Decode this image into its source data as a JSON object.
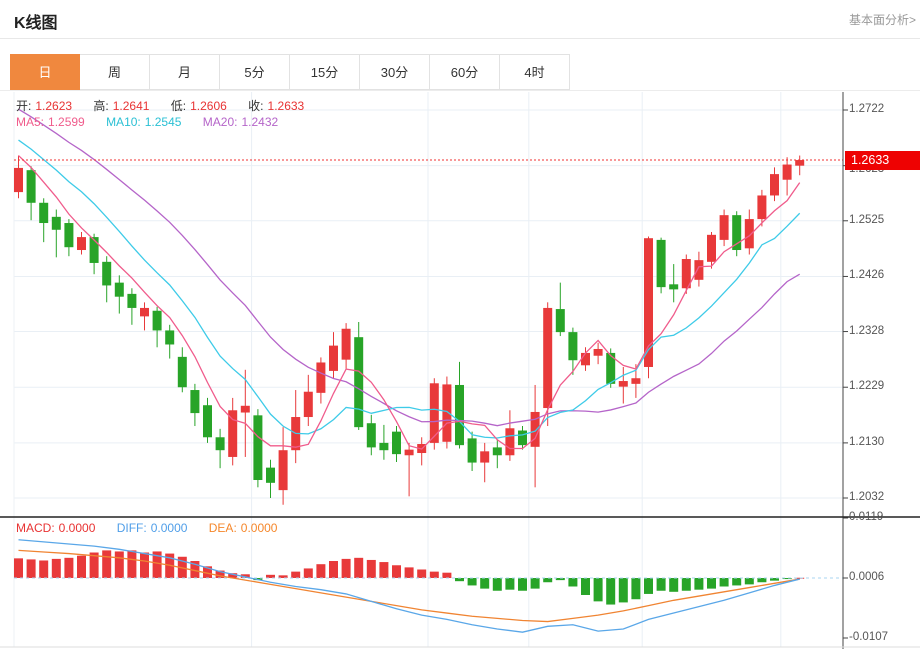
{
  "header": {
    "title": "K线图",
    "link": "基本面分析>"
  },
  "tabs": {
    "items": [
      "日",
      "周",
      "月",
      "5分",
      "15分",
      "30分",
      "60分",
      "4时"
    ],
    "selected_index": 0,
    "selected_color": "#f0883e"
  },
  "main_chart": {
    "legend_ohlc": {
      "open_label": "开:",
      "open": "1.2623",
      "high_label": "高:",
      "high": "1.2641",
      "low_label": "低:",
      "low": "1.2606",
      "close_label": "收:",
      "close": "1.2633"
    },
    "legend_ma": {
      "ma5_label": "MA5:",
      "ma5": "1.2599",
      "ma10_label": "MA10:",
      "ma10": "1.2545",
      "ma20_label": "MA20:",
      "ma20": "1.2432"
    },
    "y_axis_labels": [
      "1.2722",
      "1.2623",
      "1.2525",
      "1.2426",
      "1.2328",
      "1.2229",
      "1.2130",
      "1.2032"
    ],
    "current_price": "1.2633"
  },
  "macd_panel": {
    "legend": {
      "macd_label": "MACD:",
      "macd": "0.0000",
      "diff_label": "DIFF:",
      "diff": "0.0000",
      "dea_label": "DEA:",
      "dea": "0.0000"
    },
    "y_axis_labels": [
      "0.0119",
      "0.0006",
      "-0.0107"
    ]
  },
  "chart_data": {
    "type": "candlestick+macd",
    "colors": {
      "up": "#e8393a",
      "down": "#28a428",
      "ma5": "#f05c8c",
      "ma10": "#3ecbe8",
      "ma20": "#b565c9",
      "diff_line": "#5aa7e8",
      "dea_line": "#f08432",
      "grid": "#e9eff5",
      "axis": "#444",
      "price_line": "#f23030",
      "zero_dash": "#a8d4f0"
    },
    "x_gridline_indices": [
      19,
      33,
      41,
      50,
      61
    ],
    "panels": [
      {
        "type": "candlestick",
        "y_range": [
          1.2032,
          1.2722
        ],
        "gridline_prices": [
          1.2722,
          1.2623,
          1.2525,
          1.2426,
          1.2328,
          1.2229,
          1.213,
          1.2032
        ],
        "current_price": 1.2633,
        "ma_periods": [
          5,
          10,
          20
        ],
        "candles": [
          [
            1.2576,
            1.2641,
            1.2565,
            1.2619
          ],
          [
            1.2615,
            1.2622,
            1.2526,
            1.2557
          ],
          [
            1.2557,
            1.2565,
            1.2487,
            1.2521
          ],
          [
            1.2532,
            1.2545,
            1.246,
            1.2509
          ],
          [
            1.2521,
            1.2528,
            1.2462,
            1.2478
          ],
          [
            1.2473,
            1.2505,
            1.2465,
            1.2496
          ],
          [
            1.2496,
            1.2502,
            1.243,
            1.245
          ],
          [
            1.2452,
            1.2462,
            1.238,
            1.241
          ],
          [
            1.2415,
            1.2428,
            1.236,
            1.239
          ],
          [
            1.2395,
            1.2405,
            1.234,
            1.237
          ],
          [
            1.2355,
            1.238,
            1.233,
            1.237
          ],
          [
            1.2365,
            1.2372,
            1.23,
            1.233
          ],
          [
            1.233,
            1.234,
            1.228,
            1.2305
          ],
          [
            1.2283,
            1.23,
            1.222,
            1.2229
          ],
          [
            1.2224,
            1.2235,
            1.216,
            1.2183
          ],
          [
            1.2197,
            1.221,
            1.213,
            1.214
          ],
          [
            1.214,
            1.2155,
            1.2085,
            1.2117
          ],
          [
            1.2105,
            1.221,
            1.209,
            1.2188
          ],
          [
            1.2184,
            1.226,
            1.2105,
            1.2196
          ],
          [
            1.2179,
            1.219,
            1.2051,
            1.2064
          ],
          [
            1.2086,
            1.21,
            1.2032,
            1.2059
          ],
          [
            1.2046,
            1.2158,
            1.202,
            1.2117
          ],
          [
            1.2117,
            1.2224,
            1.2094,
            1.2176
          ],
          [
            1.2176,
            1.2251,
            1.216,
            1.2221
          ],
          [
            1.2219,
            1.2282,
            1.22,
            1.2273
          ],
          [
            1.2258,
            1.2327,
            1.2245,
            1.2303
          ],
          [
            1.2278,
            1.2343,
            1.2262,
            1.2333
          ],
          [
            1.2318,
            1.2345,
            1.2153,
            1.2158
          ],
          [
            1.2165,
            1.218,
            1.2108,
            1.2122
          ],
          [
            1.213,
            1.2162,
            1.21,
            1.2117
          ],
          [
            1.215,
            1.216,
            1.2096,
            1.211
          ],
          [
            1.2108,
            1.213,
            1.2035,
            1.2118
          ],
          [
            1.2112,
            1.214,
            1.209,
            1.2128
          ],
          [
            1.213,
            1.2245,
            1.2118,
            1.2236
          ],
          [
            1.2132,
            1.2248,
            1.212,
            1.2234
          ],
          [
            1.2233,
            1.2274,
            1.212,
            1.2126
          ],
          [
            1.2138,
            1.215,
            1.208,
            1.2095
          ],
          [
            1.2095,
            1.213,
            1.206,
            1.2115
          ],
          [
            1.2122,
            1.2135,
            1.2085,
            1.2108
          ],
          [
            1.2108,
            1.2188,
            1.2098,
            1.2156
          ],
          [
            1.2152,
            1.216,
            1.2118,
            1.2126
          ],
          [
            1.2123,
            1.2233,
            1.2051,
            1.2185
          ],
          [
            1.2192,
            1.238,
            1.216,
            1.237
          ],
          [
            1.2368,
            1.2415,
            1.232,
            1.2327
          ],
          [
            1.2327,
            1.2335,
            1.2251,
            1.2277
          ],
          [
            1.2268,
            1.23,
            1.2258,
            1.229
          ],
          [
            1.2285,
            1.2308,
            1.227,
            1.2297
          ],
          [
            1.229,
            1.2298,
            1.2228,
            1.2235
          ],
          [
            1.223,
            1.2265,
            1.22,
            1.224
          ],
          [
            1.2235,
            1.227,
            1.221,
            1.2245
          ],
          [
            1.2265,
            1.2497,
            1.2245,
            1.2494
          ],
          [
            1.2491,
            1.2495,
            1.2396,
            1.2407
          ],
          [
            1.2412,
            1.2448,
            1.238,
            1.2403
          ],
          [
            1.2405,
            1.2465,
            1.2395,
            1.2457
          ],
          [
            1.242,
            1.247,
            1.2408,
            1.2455
          ],
          [
            1.2452,
            1.2505,
            1.244,
            1.25
          ],
          [
            1.2491,
            1.2545,
            1.248,
            1.2535
          ],
          [
            1.2535,
            1.2542,
            1.2462,
            1.2473
          ],
          [
            1.2476,
            1.2545,
            1.2465,
            1.2528
          ],
          [
            1.2528,
            1.258,
            1.2515,
            1.257
          ],
          [
            1.257,
            1.262,
            1.256,
            1.2608
          ],
          [
            1.2598,
            1.2638,
            1.257,
            1.2625
          ],
          [
            1.2623,
            1.2641,
            1.2606,
            1.2633
          ]
        ]
      },
      {
        "type": "macd",
        "y_range": [
          -0.0107,
          0.0119
        ],
        "zero_level": 0.0006,
        "hist": [
          0.0037,
          0.0035,
          0.0033,
          0.0036,
          0.0038,
          0.0042,
          0.0048,
          0.0052,
          0.005,
          0.0052,
          0.0048,
          0.005,
          0.0046,
          0.004,
          0.0032,
          0.0022,
          0.0014,
          0.0009,
          0.0007,
          -0.0004,
          0.0006,
          0.0005,
          0.0012,
          0.0018,
          0.0026,
          0.0032,
          0.0036,
          0.0038,
          0.0034,
          0.003,
          0.0024,
          0.002,
          0.0016,
          0.0012,
          0.001,
          -0.0006,
          -0.0014,
          -0.002,
          -0.0024,
          -0.0022,
          -0.0024,
          -0.002,
          -0.0008,
          -0.0004,
          -0.0016,
          -0.0032,
          -0.0044,
          -0.005,
          -0.0046,
          -0.004,
          -0.003,
          -0.0024,
          -0.0026,
          -0.0024,
          -0.0022,
          -0.002,
          -0.0016,
          -0.0014,
          -0.0012,
          -0.0008,
          -0.0005,
          -0.0002,
          5e-05
        ],
        "diff": {
          "step": 2,
          "values": [
            0.0078,
            0.0074,
            0.007,
            0.0066,
            0.006,
            0.0052,
            0.0044,
            0.0032,
            0.0018,
            0.0008,
            -0.0002,
            -0.001,
            -0.0016,
            -0.0024,
            -0.0038,
            -0.0052,
            -0.0064,
            -0.0072,
            -0.0082,
            -0.009,
            -0.0096,
            -0.0085,
            -0.0082,
            -0.0094,
            -0.009,
            -0.0072,
            -0.006,
            -0.0048,
            -0.0036,
            -0.0022,
            -0.0008,
            0.0004
          ]
        },
        "dea": {
          "step": 2,
          "values": [
            0.0058,
            0.0055,
            0.0052,
            0.0048,
            0.0044,
            0.0038,
            0.003,
            0.002,
            0.001,
            0.0002,
            -0.0006,
            -0.0014,
            -0.0022,
            -0.003,
            -0.0038,
            -0.0046,
            -0.0054,
            -0.006,
            -0.0066,
            -0.007,
            -0.0074,
            -0.0076,
            -0.007,
            -0.0064,
            -0.0056,
            -0.0046,
            -0.0036,
            -0.0028,
            -0.002,
            -0.0012,
            -0.0004,
            0.0004
          ]
        }
      }
    ]
  }
}
